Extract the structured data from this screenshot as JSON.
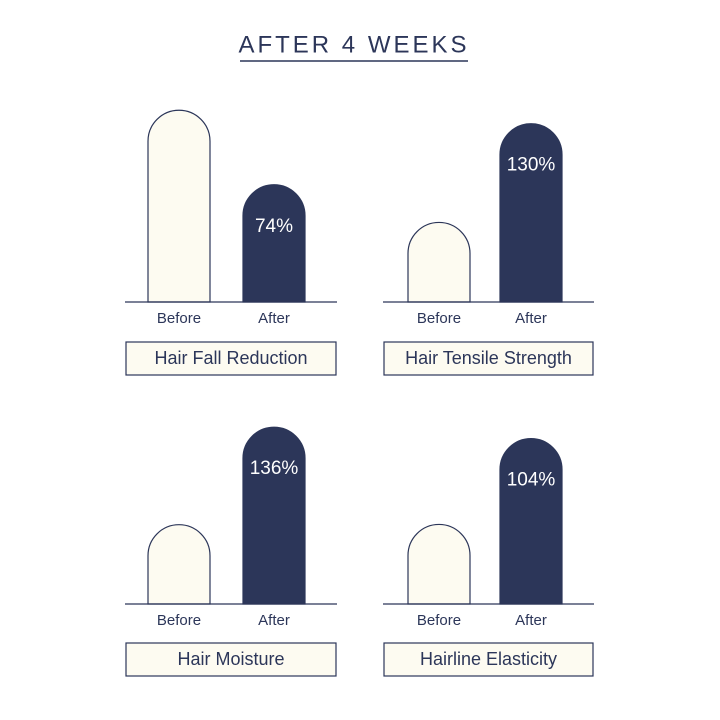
{
  "title": "AFTER 4 WEEKS",
  "chart_data": [
    {
      "type": "bar",
      "title": "Hair Fall Reduction",
      "categories": [
        "Before",
        "After"
      ],
      "values": [
        121,
        74
      ],
      "value_labels": [
        null,
        "74%"
      ],
      "colors": [
        "#fdfbf1",
        "#2c3659"
      ],
      "ylim": [
        0,
        130
      ]
    },
    {
      "type": "bar",
      "title": "Hair Tensile Strength",
      "categories": [
        "Before",
        "After"
      ],
      "values": [
        58,
        130
      ],
      "value_labels": [
        null,
        "130%"
      ],
      "colors": [
        "#fdfbf1",
        "#2c3659"
      ],
      "ylim": [
        0,
        140
      ]
    },
    {
      "type": "bar",
      "title": "Hair Moisture",
      "categories": [
        "Before",
        "After"
      ],
      "values": [
        61,
        136
      ],
      "value_labels": [
        null,
        "136%"
      ],
      "colors": [
        "#fdfbf1",
        "#2c3659"
      ],
      "ylim": [
        0,
        140
      ]
    },
    {
      "type": "bar",
      "title": "Hairline Elasticity",
      "categories": [
        "Before",
        "After"
      ],
      "values": [
        50,
        104
      ],
      "value_labels": [
        null,
        "104%"
      ],
      "colors": [
        "#fdfbf1",
        "#2c3659"
      ],
      "ylim": [
        0,
        110
      ]
    }
  ]
}
